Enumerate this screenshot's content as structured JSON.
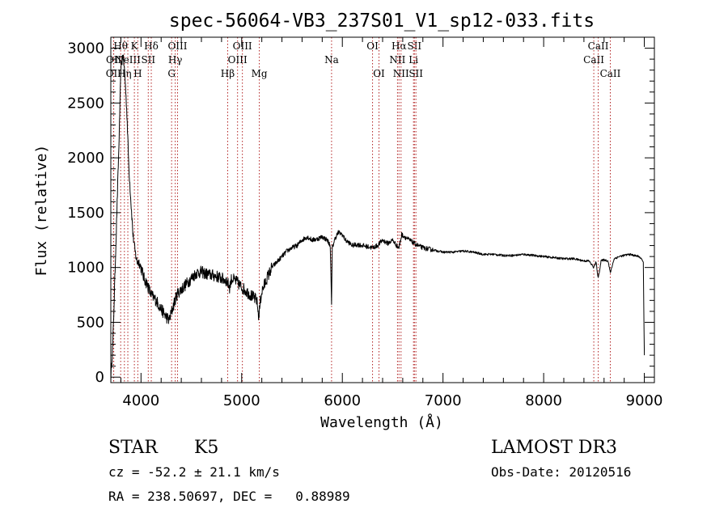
{
  "chart_data": {
    "type": "line",
    "title": "spec-56064-VB3_237S01_V1_sp12-033.fits",
    "xlabel": "Wavelength (Å)",
    "ylabel": "Flux (relative)",
    "xlim": [
      3700,
      9100
    ],
    "ylim": [
      -50,
      3100
    ],
    "xticks": [
      4000,
      5000,
      6000,
      7000,
      8000,
      9000
    ],
    "yticks": [
      0,
      500,
      1000,
      1500,
      2000,
      2500,
      3000
    ],
    "grid": false,
    "line_color": "#000000",
    "marker_color": "#b22222",
    "series": [
      {
        "name": "flux",
        "x": [
          3700,
          3720,
          3740,
          3760,
          3780,
          3800,
          3820,
          3840,
          3860,
          3880,
          3900,
          3920,
          3940,
          3960,
          3980,
          4000,
          4030,
          4060,
          4100,
          4150,
          4200,
          4250,
          4280,
          4300,
          4330,
          4360,
          4400,
          4450,
          4500,
          4550,
          4600,
          4650,
          4700,
          4750,
          4800,
          4850,
          4880,
          4900,
          4950,
          5000,
          5050,
          5100,
          5150,
          5170,
          5185,
          5200,
          5250,
          5300,
          5350,
          5400,
          5450,
          5500,
          5550,
          5600,
          5650,
          5700,
          5750,
          5800,
          5850,
          5880,
          5893,
          5900,
          5930,
          5960,
          6000,
          6030,
          6060,
          6100,
          6150,
          6200,
          6250,
          6300,
          6350,
          6400,
          6450,
          6500,
          6540,
          6563,
          6590,
          6650,
          6700,
          6750,
          6800,
          6850,
          6900,
          6950,
          7000,
          7100,
          7200,
          7300,
          7400,
          7500,
          7600,
          7700,
          7800,
          7900,
          8000,
          8100,
          8200,
          8300,
          8400,
          8450,
          8498,
          8520,
          8542,
          8570,
          8600,
          8640,
          8662,
          8700,
          8750,
          8800,
          8850,
          8900,
          8950,
          8990,
          9000
        ],
        "values": [
          0,
          300,
          900,
          1500,
          2100,
          2800,
          2950,
          2750,
          2400,
          1900,
          1600,
          1300,
          1150,
          1050,
          1050,
          1000,
          900,
          850,
          750,
          700,
          620,
          550,
          520,
          580,
          680,
          760,
          800,
          850,
          900,
          950,
          960,
          940,
          930,
          920,
          900,
          880,
          820,
          900,
          870,
          820,
          780,
          740,
          700,
          550,
          690,
          780,
          900,
          1000,
          1050,
          1100,
          1150,
          1180,
          1200,
          1250,
          1280,
          1250,
          1260,
          1280,
          1250,
          1200,
          650,
          1180,
          1270,
          1320,
          1300,
          1250,
          1230,
          1200,
          1210,
          1200,
          1190,
          1180,
          1200,
          1250,
          1220,
          1250,
          1200,
          1180,
          1300,
          1260,
          1230,
          1200,
          1180,
          1170,
          1160,
          1150,
          1140,
          1140,
          1150,
          1140,
          1120,
          1120,
          1110,
          1110,
          1120,
          1110,
          1100,
          1090,
          1080,
          1080,
          1060,
          1060,
          1000,
          1050,
          900,
          1060,
          1070,
          1060,
          950,
          1080,
          1100,
          1110,
          1120,
          1110,
          1100,
          1050,
          200
        ]
      }
    ],
    "line_markers": [
      {
        "wl": 3727,
        "label": "OII",
        "row": 2
      },
      {
        "wl": 3729,
        "label": "OII",
        "row": 1
      },
      {
        "wl": 3798,
        "label": "Hθ",
        "row": 0
      },
      {
        "wl": 3835,
        "label": "Hη",
        "row": 2
      },
      {
        "wl": 3869,
        "label": "NeIII",
        "row": 1
      },
      {
        "wl": 3934,
        "label": "K",
        "row": 0
      },
      {
        "wl": 3968,
        "label": "H",
        "row": 2
      },
      {
        "wl": 4072,
        "label": "SII",
        "row": 1
      },
      {
        "wl": 4102,
        "label": "Hδ",
        "row": 0
      },
      {
        "wl": 4304,
        "label": "G",
        "row": 2
      },
      {
        "wl": 4340,
        "label": "Hγ",
        "row": 1
      },
      {
        "wl": 4363,
        "label": "OIII",
        "row": 0
      },
      {
        "wl": 4861,
        "label": "Hβ",
        "row": 2
      },
      {
        "wl": 4959,
        "label": "OIII",
        "row": 1
      },
      {
        "wl": 5007,
        "label": "OIII",
        "row": 0
      },
      {
        "wl": 5175,
        "label": "Mg",
        "row": 2
      },
      {
        "wl": 5893,
        "label": "Na",
        "row": 1
      },
      {
        "wl": 6300,
        "label": "OI",
        "row": 0
      },
      {
        "wl": 6364,
        "label": "OI",
        "row": 2
      },
      {
        "wl": 6548,
        "label": "NII",
        "row": 1
      },
      {
        "wl": 6563,
        "label": "Hα",
        "row": 0
      },
      {
        "wl": 6583,
        "label": "NII",
        "row": 2
      },
      {
        "wl": 6707,
        "label": "Li",
        "row": 1
      },
      {
        "wl": 6716,
        "label": "SII",
        "row": 0
      },
      {
        "wl": 6731,
        "label": "SII",
        "row": 2
      },
      {
        "wl": 8498,
        "label": "CaII",
        "row": 1
      },
      {
        "wl": 8542,
        "label": "CaII",
        "row": 0
      },
      {
        "wl": 8662,
        "label": "CaII",
        "row": 2
      }
    ]
  },
  "info": {
    "object_class": "STAR",
    "subclass": "K5",
    "redshift_line": "cz = -52.2 ± 21.1 km/s",
    "coords_line": "RA = 238.50697, DEC =   0.88989",
    "survey": "LAMOST DR3",
    "obs_date": "Obs-Date: 20120516"
  }
}
